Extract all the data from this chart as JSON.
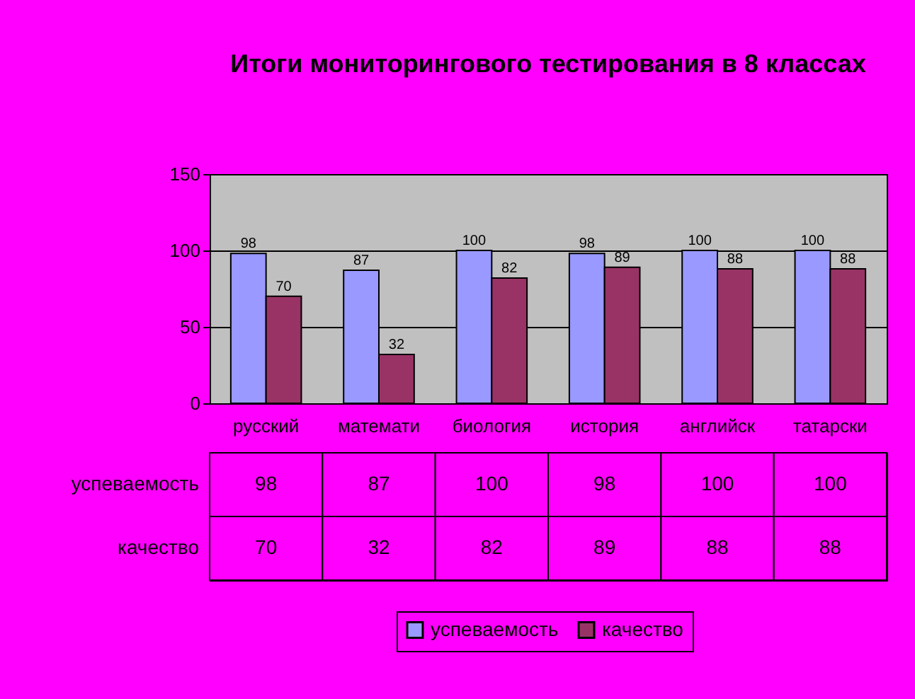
{
  "chart_data": {
    "type": "bar",
    "title": "Итоги мониторингового тестирования в 8 классах",
    "categories": [
      "русский",
      "математи",
      "биология",
      "история",
      "английск",
      "татарски"
    ],
    "series": [
      {
        "name": "успеваемость",
        "color": "#9999ff",
        "values": [
          98,
          87,
          100,
          98,
          100,
          100
        ]
      },
      {
        "name": "качество",
        "color": "#993366",
        "values": [
          70,
          32,
          82,
          89,
          88,
          88
        ]
      }
    ],
    "ylim": [
      0,
      150
    ],
    "yticks": [
      0,
      50,
      100,
      150
    ],
    "grid": "y",
    "legend": "bottom",
    "data_labels": true,
    "annotations": [
      {
        "text": "98",
        "x": "русский",
        "y": 98
      },
      {
        "text": "70",
        "x": "русский",
        "y": 70
      },
      {
        "text": "87",
        "x": "математи",
        "y": 87
      },
      {
        "text": "32",
        "x": "математи",
        "y": 32
      },
      {
        "text": "100",
        "x": "биология",
        "y": 100
      },
      {
        "text": "82",
        "x": "биология",
        "y": 82
      },
      {
        "text": "98",
        "x": "история",
        "y": 98
      },
      {
        "text": "89",
        "x": "история",
        "y": 89
      },
      {
        "text": "100",
        "x": "английск",
        "y": 100
      },
      {
        "text": "88",
        "x": "английск",
        "y": 88
      },
      {
        "text": "100",
        "x": "татарски",
        "y": 100
      },
      {
        "text": "88",
        "x": "татарски",
        "y": 88
      }
    ]
  }
}
